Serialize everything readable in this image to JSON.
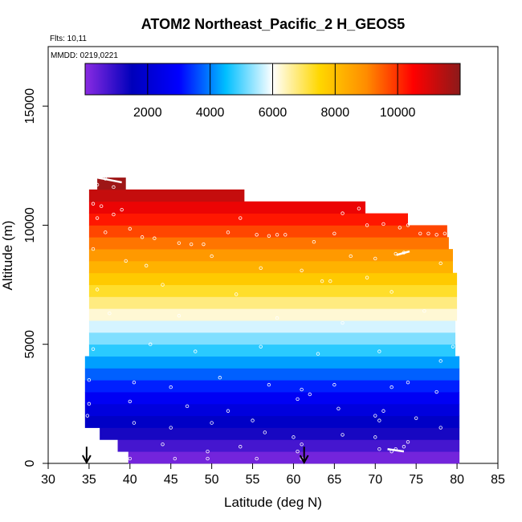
{
  "chart_data": {
    "type": "heatmap",
    "title": "ATOM2 Northeast_Pacific_2 H_GEOS5",
    "annotations": [
      "Flts: 10,11",
      "MMDD: 0219,0221"
    ],
    "xlabel": "Latitude (deg N)",
    "ylabel": "Altitude (m)",
    "xlim": [
      30,
      85
    ],
    "ylim": [
      0,
      17500
    ],
    "x_ticks": [
      30,
      35,
      40,
      45,
      50,
      55,
      60,
      65,
      70,
      75,
      80,
      85
    ],
    "y_ticks": [
      0,
      5000,
      10000,
      15000
    ],
    "colorbar": {
      "range": [
        0,
        12000
      ],
      "ticks": [
        2000,
        4000,
        6000,
        8000,
        10000
      ],
      "colors": [
        "#8a2be2",
        "#0000bb",
        "#0000ff",
        "#00bfff",
        "#ffffff",
        "#ffd700",
        "#ff8c00",
        "#ff0000",
        "#8b1a1a"
      ]
    },
    "field_bins": [
      {
        "alt": 250,
        "lat": [
          39.8,
          80.3
        ],
        "value": 250
      },
      {
        "alt": 750,
        "lat": [
          38.5,
          80.3
        ],
        "value": 750
      },
      {
        "alt": 1250,
        "lat": [
          36.3,
          80.3
        ],
        "value": 1250
      },
      {
        "alt": 1750,
        "lat": [
          34.5,
          80.3
        ],
        "value": 1750
      },
      {
        "alt": 2250,
        "lat": [
          34.5,
          80.3
        ],
        "value": 2250
      },
      {
        "alt": 2750,
        "lat": [
          34.5,
          80.3
        ],
        "value": 2750
      },
      {
        "alt": 3250,
        "lat": [
          34.5,
          80.3
        ],
        "value": 3250
      },
      {
        "alt": 3750,
        "lat": [
          34.5,
          80.3
        ],
        "value": 3750
      },
      {
        "alt": 4250,
        "lat": [
          34.5,
          80.3
        ],
        "value": 4250
      },
      {
        "alt": 4750,
        "lat": [
          35.0,
          79.8
        ],
        "value": 4750
      },
      {
        "alt": 5250,
        "lat": [
          35.0,
          79.8
        ],
        "value": 5250
      },
      {
        "alt": 5750,
        "lat": [
          35.0,
          79.8
        ],
        "value": 5750
      },
      {
        "alt": 6250,
        "lat": [
          35.0,
          80.0
        ],
        "value": 6250
      },
      {
        "alt": 6750,
        "lat": [
          35.0,
          80.0
        ],
        "value": 6750
      },
      {
        "alt": 7250,
        "lat": [
          35.0,
          80.0
        ],
        "value": 7250
      },
      {
        "alt": 7750,
        "lat": [
          35.0,
          80.0
        ],
        "value": 7750
      },
      {
        "alt": 8250,
        "lat": [
          35.0,
          79.5
        ],
        "value": 8250
      },
      {
        "alt": 8750,
        "lat": [
          35.0,
          79.5
        ],
        "value": 8750
      },
      {
        "alt": 9250,
        "lat": [
          35.0,
          79.0
        ],
        "value": 9250
      },
      {
        "alt": 9750,
        "lat": [
          35.0,
          78.8
        ],
        "value": 9750
      },
      {
        "alt": 10250,
        "lat": [
          35.0,
          74.0
        ],
        "value": 10250
      },
      {
        "alt": 10750,
        "lat": [
          35.0,
          68.8
        ],
        "value": 10750
      },
      {
        "alt": 11250,
        "lat": [
          35.0,
          54.0
        ],
        "value": 11250
      },
      {
        "alt": 11750,
        "lat": [
          36.0,
          39.5
        ],
        "value": 11750
      }
    ],
    "flight_points": [
      {
        "lat": 35.2,
        "alt": 11900
      },
      {
        "lat": 36.0,
        "alt": 11700
      },
      {
        "lat": 37.0,
        "alt": 11950
      },
      {
        "lat": 38.0,
        "alt": 11600
      },
      {
        "lat": 35.5,
        "alt": 10900
      },
      {
        "lat": 36.5,
        "alt": 10800
      },
      {
        "lat": 39.0,
        "alt": 10650
      },
      {
        "lat": 36.0,
        "alt": 10300
      },
      {
        "lat": 38.0,
        "alt": 10450
      },
      {
        "lat": 53.5,
        "alt": 10300
      },
      {
        "lat": 66.0,
        "alt": 10500
      },
      {
        "lat": 68.0,
        "alt": 10700
      },
      {
        "lat": 69.0,
        "alt": 10000
      },
      {
        "lat": 71.0,
        "alt": 10050
      },
      {
        "lat": 37.0,
        "alt": 9700
      },
      {
        "lat": 40.0,
        "alt": 9850
      },
      {
        "lat": 41.5,
        "alt": 9500
      },
      {
        "lat": 43.0,
        "alt": 9450
      },
      {
        "lat": 46.0,
        "alt": 9250
      },
      {
        "lat": 47.5,
        "alt": 9200
      },
      {
        "lat": 49.0,
        "alt": 9200
      },
      {
        "lat": 52.0,
        "alt": 9700
      },
      {
        "lat": 55.5,
        "alt": 9600
      },
      {
        "lat": 57.0,
        "alt": 9550
      },
      {
        "lat": 58.0,
        "alt": 9600
      },
      {
        "lat": 59.0,
        "alt": 9600
      },
      {
        "lat": 62.5,
        "alt": 9300
      },
      {
        "lat": 65.0,
        "alt": 9650
      },
      {
        "lat": 73.0,
        "alt": 9900
      },
      {
        "lat": 74.0,
        "alt": 10000
      },
      {
        "lat": 75.5,
        "alt": 9650
      },
      {
        "lat": 76.5,
        "alt": 9650
      },
      {
        "lat": 77.5,
        "alt": 9600
      },
      {
        "lat": 78.5,
        "alt": 9650
      },
      {
        "lat": 35.5,
        "alt": 9000
      },
      {
        "lat": 39.5,
        "alt": 8500
      },
      {
        "lat": 42.0,
        "alt": 8300
      },
      {
        "lat": 50.0,
        "alt": 8700
      },
      {
        "lat": 56.0,
        "alt": 8200
      },
      {
        "lat": 61.0,
        "alt": 8100
      },
      {
        "lat": 67.0,
        "alt": 8700
      },
      {
        "lat": 70.0,
        "alt": 8600
      },
      {
        "lat": 72.5,
        "alt": 8800
      },
      {
        "lat": 73.5,
        "alt": 8850
      },
      {
        "lat": 78.0,
        "alt": 8400
      },
      {
        "lat": 36.0,
        "alt": 7300
      },
      {
        "lat": 44.0,
        "alt": 7500
      },
      {
        "lat": 53.0,
        "alt": 7100
      },
      {
        "lat": 63.5,
        "alt": 7650
      },
      {
        "lat": 64.5,
        "alt": 7650
      },
      {
        "lat": 69.0,
        "alt": 7800
      },
      {
        "lat": 72.0,
        "alt": 7200
      },
      {
        "lat": 37.5,
        "alt": 6300
      },
      {
        "lat": 46.0,
        "alt": 6200
      },
      {
        "lat": 58.0,
        "alt": 6100
      },
      {
        "lat": 66.0,
        "alt": 5900
      },
      {
        "lat": 76.0,
        "alt": 6400
      },
      {
        "lat": 35.5,
        "alt": 4800
      },
      {
        "lat": 42.5,
        "alt": 5000
      },
      {
        "lat": 48.0,
        "alt": 4700
      },
      {
        "lat": 56.0,
        "alt": 4900
      },
      {
        "lat": 63.0,
        "alt": 4600
      },
      {
        "lat": 70.5,
        "alt": 4700
      },
      {
        "lat": 78.0,
        "alt": 4300
      },
      {
        "lat": 79.5,
        "alt": 4900
      },
      {
        "lat": 35.0,
        "alt": 3500
      },
      {
        "lat": 40.5,
        "alt": 3400
      },
      {
        "lat": 45.0,
        "alt": 3200
      },
      {
        "lat": 51.0,
        "alt": 3600
      },
      {
        "lat": 57.0,
        "alt": 3300
      },
      {
        "lat": 61.0,
        "alt": 3100
      },
      {
        "lat": 65.0,
        "alt": 3300
      },
      {
        "lat": 72.0,
        "alt": 3200
      },
      {
        "lat": 74.0,
        "alt": 3400
      },
      {
        "lat": 77.5,
        "alt": 3000
      },
      {
        "lat": 34.8,
        "alt": 2000
      },
      {
        "lat": 35.0,
        "alt": 2500
      },
      {
        "lat": 40.0,
        "alt": 2600
      },
      {
        "lat": 47.0,
        "alt": 2400
      },
      {
        "lat": 52.0,
        "alt": 2200
      },
      {
        "lat": 60.5,
        "alt": 2700
      },
      {
        "lat": 62.0,
        "alt": 2900
      },
      {
        "lat": 65.5,
        "alt": 2300
      },
      {
        "lat": 70.0,
        "alt": 2000
      },
      {
        "lat": 70.5,
        "alt": 1800
      },
      {
        "lat": 71.0,
        "alt": 2200
      },
      {
        "lat": 75.0,
        "alt": 1900
      },
      {
        "lat": 40.5,
        "alt": 1700
      },
      {
        "lat": 45.0,
        "alt": 1500
      },
      {
        "lat": 50.0,
        "alt": 1700
      },
      {
        "lat": 55.0,
        "alt": 1800
      },
      {
        "lat": 56.5,
        "alt": 1300
      },
      {
        "lat": 60.0,
        "alt": 1100
      },
      {
        "lat": 61.0,
        "alt": 800
      },
      {
        "lat": 66.0,
        "alt": 1200
      },
      {
        "lat": 70.0,
        "alt": 1100
      },
      {
        "lat": 70.5,
        "alt": 600
      },
      {
        "lat": 72.0,
        "alt": 500
      },
      {
        "lat": 72.5,
        "alt": 600
      },
      {
        "lat": 73.5,
        "alt": 700
      },
      {
        "lat": 74.0,
        "alt": 900
      },
      {
        "lat": 78.0,
        "alt": 1500
      },
      {
        "lat": 40.0,
        "alt": 200
      },
      {
        "lat": 44.0,
        "alt": 800
      },
      {
        "lat": 45.5,
        "alt": 200
      },
      {
        "lat": 49.5,
        "alt": 500
      },
      {
        "lat": 49.5,
        "alt": 200
      },
      {
        "lat": 53.5,
        "alt": 700
      },
      {
        "lat": 55.5,
        "alt": 200
      },
      {
        "lat": 60.5,
        "alt": 500
      },
      {
        "lat": 61.0,
        "alt": 200
      }
    ],
    "flight_tracks": [
      {
        "lat": [
          36.0,
          39.0
        ],
        "alt": [
          12000,
          11800
        ]
      },
      {
        "lat": [
          72.6,
          74.2
        ],
        "alt": [
          8750,
          8900
        ]
      },
      {
        "lat": [
          71.5,
          73.5
        ],
        "alt": [
          600,
          500
        ]
      }
    ],
    "arrows": [
      {
        "lat": 34.7,
        "alt_from": 700,
        "alt_to": 0
      },
      {
        "lat": 61.3,
        "alt_from": 700,
        "alt_to": 0
      }
    ]
  }
}
